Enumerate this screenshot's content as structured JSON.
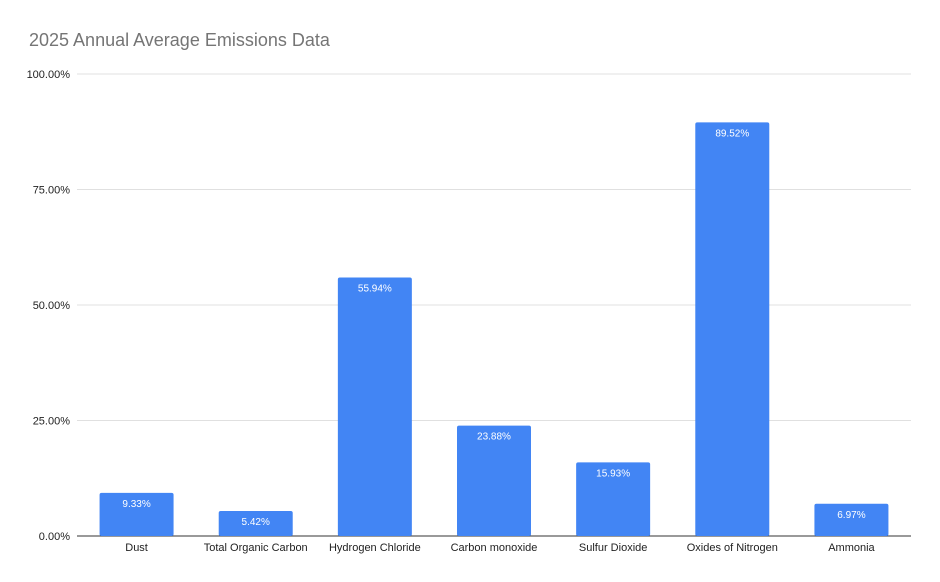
{
  "chart_data": {
    "type": "bar",
    "title": "2025 Annual Average Emissions Data",
    "xlabel": "",
    "ylabel": "",
    "categories": [
      "Dust",
      "Total Organic Carbon",
      "Hydrogen Chloride",
      "Carbon monoxide",
      "Sulfur Dioxide",
      "Oxides of Nitrogen",
      "Ammonia"
    ],
    "values": [
      9.33,
      5.42,
      55.94,
      23.88,
      15.93,
      89.52,
      6.97
    ],
    "data_labels": [
      "9.33%",
      "5.42%",
      "55.94%",
      "23.88%",
      "15.93%",
      "89.52%",
      "6.97%"
    ],
    "ylim": [
      0,
      100
    ],
    "yticks": [
      0,
      25,
      50,
      75,
      100
    ],
    "ytick_labels": [
      "0.00%",
      "25.00%",
      "50.00%",
      "75.00%",
      "100.00%"
    ],
    "grid": true,
    "legend": "none",
    "bar_color": "#4285f4",
    "gridline_color": "#e0e0e0",
    "title_color": "#757575"
  }
}
